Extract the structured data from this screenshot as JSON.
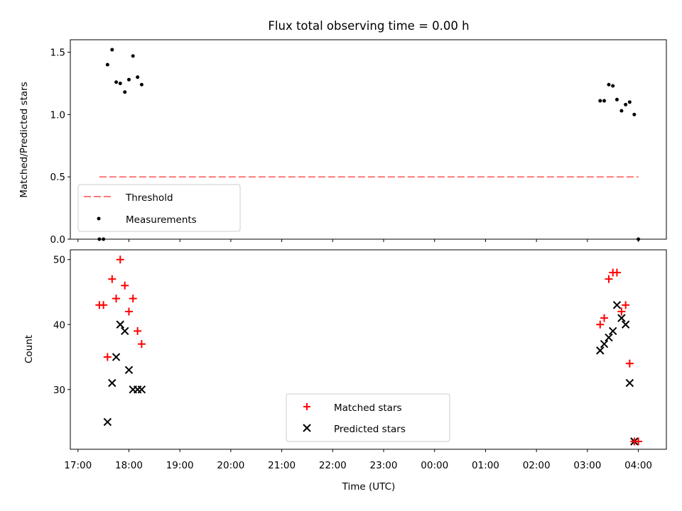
{
  "chart_data": [
    {
      "type": "scatter",
      "title": "Flux total observing time = 0.00 h",
      "xlabel": "",
      "ylabel": "Matched/Predicted stars",
      "ylim": [
        0.0,
        1.6
      ],
      "xlim": [
        -0.15,
        11.55
      ],
      "yticks": [
        0.0,
        0.5,
        1.0,
        1.5
      ],
      "ytick_labels": [
        "0.0",
        "0.5",
        "1.0",
        "1.5"
      ],
      "legend_position": "lower-left",
      "series": [
        {
          "name": "Threshold",
          "kind": "dashed-line",
          "color": "#ff7777",
          "x": [
            0.42,
            11.0
          ],
          "y": [
            0.5,
            0.5
          ]
        },
        {
          "name": "Measurements",
          "kind": "points",
          "color": "#000000",
          "x": [
            0.42,
            0.5,
            0.58,
            0.67,
            0.75,
            0.83,
            0.92,
            1.0,
            1.08,
            1.17,
            1.25,
            10.25,
            10.33,
            10.42,
            10.5,
            10.58,
            10.67,
            10.75,
            10.83,
            10.92,
            11.0
          ],
          "y": [
            0.0,
            0.0,
            1.4,
            1.52,
            1.26,
            1.25,
            1.18,
            1.28,
            1.47,
            1.3,
            1.24,
            1.11,
            1.11,
            1.24,
            1.23,
            1.12,
            1.03,
            1.08,
            1.1,
            1.0,
            0.0
          ]
        }
      ]
    },
    {
      "type": "scatter",
      "title": "",
      "xlabel": "Time (UTC)",
      "ylabel": "Count",
      "ylim": [
        20.8,
        51.5
      ],
      "xlim": [
        -0.15,
        11.55
      ],
      "yticks": [
        30,
        40,
        50
      ],
      "ytick_labels": [
        "30",
        "40",
        "50"
      ],
      "categories": [
        "17:00",
        "18:00",
        "19:00",
        "20:00",
        "21:00",
        "22:00",
        "23:00",
        "00:00",
        "01:00",
        "02:00",
        "03:00",
        "04:00"
      ],
      "legend_position": "lower-center",
      "series": [
        {
          "name": "Matched stars",
          "marker": "plus",
          "color": "#ff0000",
          "x": [
            0.42,
            0.5,
            0.58,
            0.67,
            0.75,
            0.83,
            0.92,
            1.0,
            1.08,
            1.17,
            1.25,
            10.25,
            10.33,
            10.42,
            10.5,
            10.58,
            10.67,
            10.75,
            10.83,
            10.92,
            11.0
          ],
          "y": [
            43,
            43,
            35,
            47,
            44,
            50,
            46,
            42,
            44,
            39,
            37,
            40,
            41,
            47,
            48,
            48,
            42,
            43,
            34,
            22,
            22
          ]
        },
        {
          "name": "Predicted stars",
          "marker": "x",
          "color": "#000000",
          "x": [
            0.58,
            0.67,
            0.75,
            0.83,
            0.92,
            1.0,
            1.08,
            1.17,
            1.25,
            10.25,
            10.33,
            10.42,
            10.5,
            10.58,
            10.67,
            10.75,
            10.83,
            10.92
          ],
          "y": [
            25,
            31,
            35,
            40,
            39,
            33,
            30,
            30,
            30,
            36,
            37,
            38,
            39,
            43,
            41,
            40,
            31,
            22
          ]
        }
      ]
    }
  ]
}
